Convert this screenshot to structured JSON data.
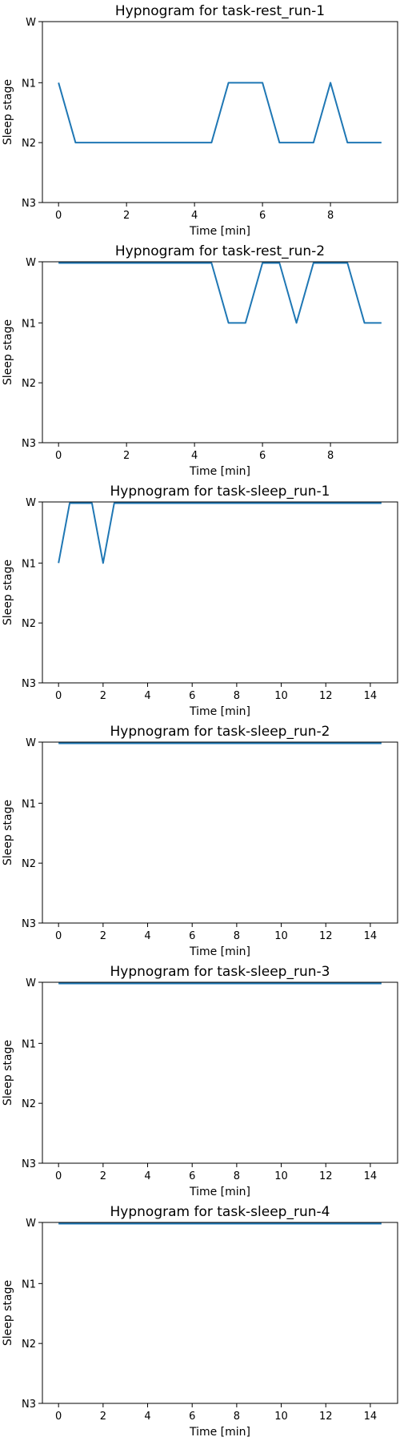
{
  "figure": {
    "line_color": "#1f77b4",
    "stage_order": [
      "W",
      "N1",
      "N2",
      "N3"
    ]
  },
  "chart_data": [
    {
      "type": "line",
      "title": "Hypnogram for task-rest_run-1",
      "xlabel": "Time [min]",
      "ylabel": "Sleep stage",
      "xlim": [
        -0.475,
        9.975
      ],
      "xticks": [
        0,
        2,
        4,
        6,
        8
      ],
      "yticks": [
        "W",
        "N1",
        "N2",
        "N3"
      ],
      "grid": false,
      "series": [
        {
          "x": [
            0,
            0.5,
            1,
            1.5,
            2,
            2.5,
            3,
            3.5,
            4,
            4.5,
            5,
            5.5,
            6,
            6.5,
            7,
            7.5,
            8,
            8.5,
            9,
            9.5
          ],
          "y": [
            "N1",
            "N2",
            "N2",
            "N2",
            "N2",
            "N2",
            "N2",
            "N2",
            "N2",
            "N2",
            "N1",
            "N1",
            "N1",
            "N2",
            "N2",
            "N2",
            "N1",
            "N2",
            "N2",
            "N2"
          ]
        }
      ]
    },
    {
      "type": "line",
      "title": "Hypnogram for task-rest_run-2",
      "xlabel": "Time [min]",
      "ylabel": "Sleep stage",
      "xlim": [
        -0.475,
        9.975
      ],
      "xticks": [
        0,
        2,
        4,
        6,
        8
      ],
      "yticks": [
        "W",
        "N1",
        "N2",
        "N3"
      ],
      "grid": false,
      "series": [
        {
          "x": [
            0,
            0.5,
            1,
            1.5,
            2,
            2.5,
            3,
            3.5,
            4,
            4.5,
            5,
            5.5,
            6,
            6.5,
            7,
            7.5,
            8,
            8.5,
            9,
            9.5
          ],
          "y": [
            "W",
            "W",
            "W",
            "W",
            "W",
            "W",
            "W",
            "W",
            "W",
            "W",
            "N1",
            "N1",
            "W",
            "W",
            "N1",
            "W",
            "W",
            "W",
            "N1",
            "N1"
          ]
        }
      ]
    },
    {
      "type": "line",
      "title": "Hypnogram for task-sleep_run-1",
      "xlabel": "Time [min]",
      "ylabel": "Sleep stage",
      "xlim": [
        -0.725,
        15.225
      ],
      "xticks": [
        0,
        2,
        4,
        6,
        8,
        10,
        12,
        14
      ],
      "yticks": [
        "W",
        "N1",
        "N2",
        "N3"
      ],
      "grid": false,
      "series": [
        {
          "x": [
            0,
            0.5,
            1,
            1.5,
            2,
            2.5,
            14.5
          ],
          "y": [
            "N1",
            "W",
            "W",
            "W",
            "N1",
            "W",
            "W"
          ]
        }
      ]
    },
    {
      "type": "line",
      "title": "Hypnogram for task-sleep_run-2",
      "xlabel": "Time [min]",
      "ylabel": "Sleep stage",
      "xlim": [
        -0.725,
        15.225
      ],
      "xticks": [
        0,
        2,
        4,
        6,
        8,
        10,
        12,
        14
      ],
      "yticks": [
        "W",
        "N1",
        "N2",
        "N3"
      ],
      "grid": false,
      "series": [
        {
          "x": [
            0,
            14.5
          ],
          "y": [
            "W",
            "W"
          ]
        }
      ]
    },
    {
      "type": "line",
      "title": "Hypnogram for task-sleep_run-3",
      "xlabel": "Time [min]",
      "ylabel": "Sleep stage",
      "xlim": [
        -0.725,
        15.225
      ],
      "xticks": [
        0,
        2,
        4,
        6,
        8,
        10,
        12,
        14
      ],
      "yticks": [
        "W",
        "N1",
        "N2",
        "N3"
      ],
      "grid": false,
      "series": [
        {
          "x": [
            0,
            14.5
          ],
          "y": [
            "W",
            "W"
          ]
        }
      ]
    },
    {
      "type": "line",
      "title": "Hypnogram for task-sleep_run-4",
      "xlabel": "Time [min]",
      "ylabel": "Sleep stage",
      "xlim": [
        -0.725,
        15.225
      ],
      "xticks": [
        0,
        2,
        4,
        6,
        8,
        10,
        12,
        14
      ],
      "yticks": [
        "W",
        "N1",
        "N2",
        "N3"
      ],
      "grid": false,
      "series": [
        {
          "x": [
            0,
            14.5
          ],
          "y": [
            "W",
            "W"
          ]
        }
      ]
    }
  ]
}
